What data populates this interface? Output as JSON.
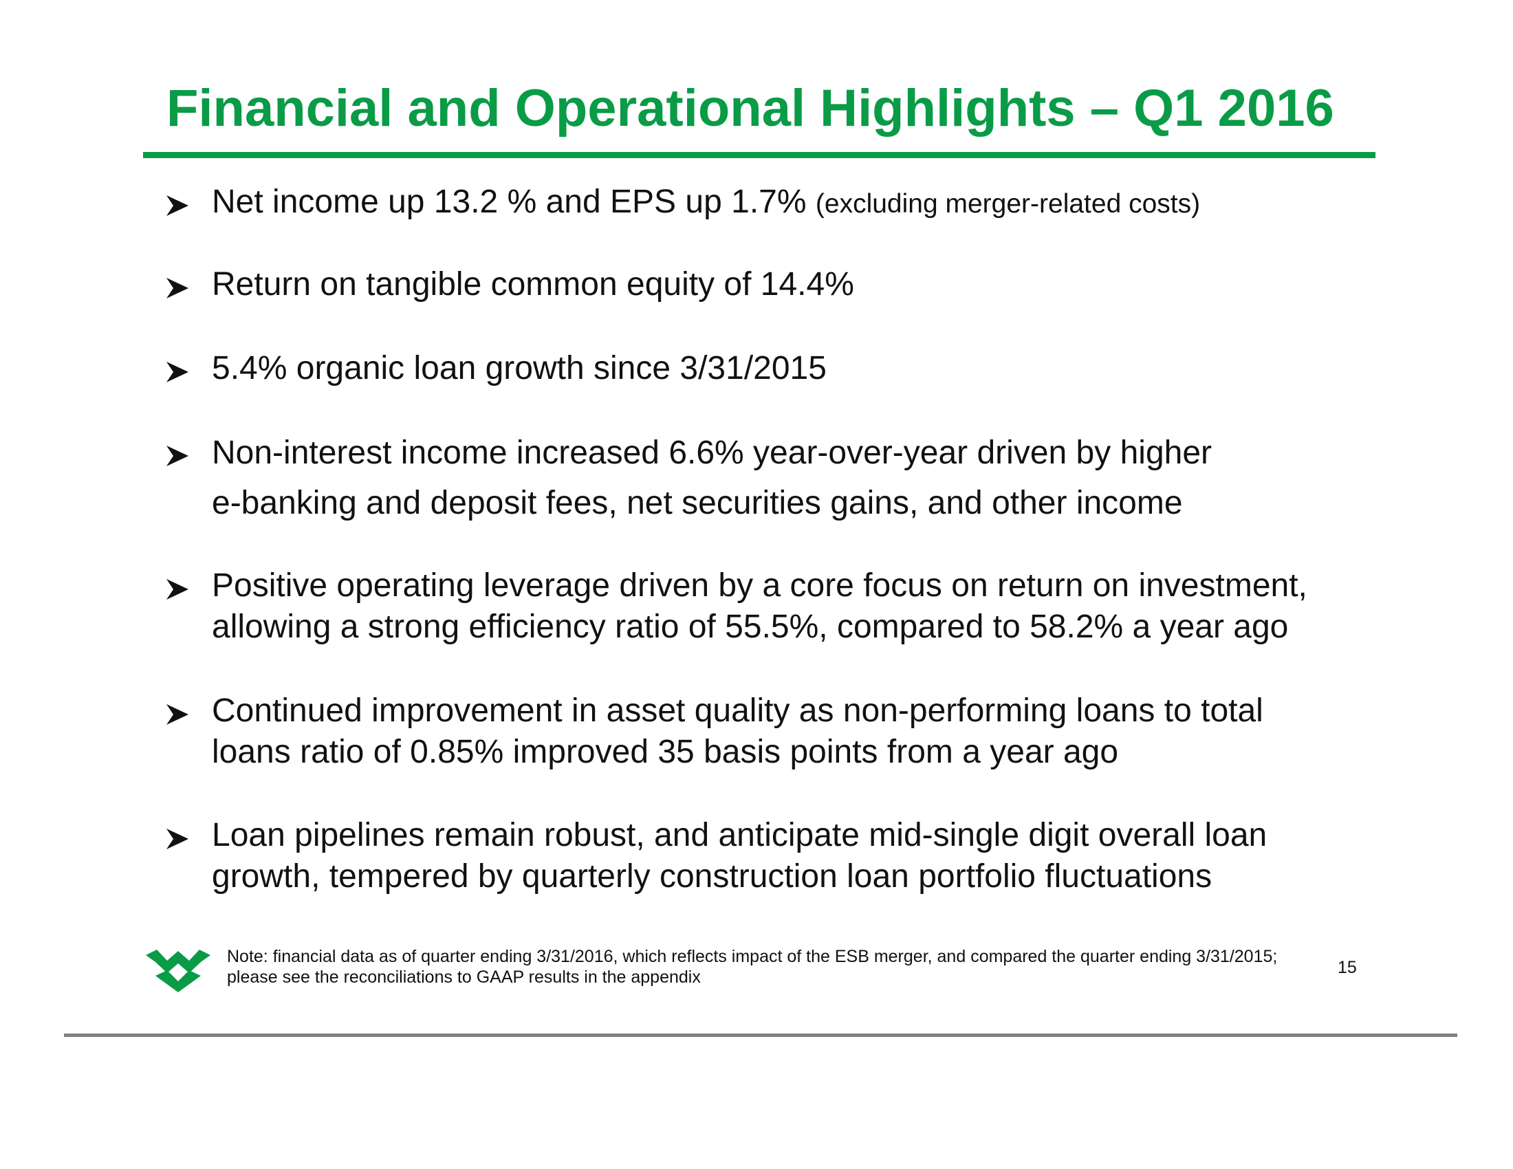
{
  "title": "Financial and Operational Highlights – Q1 2016",
  "colors": {
    "accent": "#0a9b47",
    "text": "#111111",
    "bottom_rule": "#808080"
  },
  "bullet_icon": "arrowhead-bullet-icon",
  "bullets": [
    {
      "text": "Net income up 13.2 % and EPS up 1.7%",
      "note": "(excluding merger-related costs)"
    },
    {
      "text": "Return on tangible common equity of 14.4%"
    },
    {
      "text": "5.4% organic loan growth since 3/31/2015"
    },
    {
      "text": "Non-interest income increased 6.6% year-over-year driven by higher\ne-banking and deposit fees, net securities gains, and other income"
    },
    {
      "text": "Positive operating leverage driven by a core focus on return on investment,\nallowing a strong efficiency ratio of 55.5%, compared to 58.2% a year ago"
    },
    {
      "text": "Continued improvement in asset quality as non-performing loans to total\nloans ratio of 0.85% improved 35 basis points from a year ago"
    },
    {
      "text": "Loan pipelines remain robust, and anticipate mid-single digit overall loan\ngrowth, tempered by quarterly construction loan portfolio fluctuations"
    }
  ],
  "footnote": "Note: financial data as of quarter ending 3/31/2016, which reflects impact of the ESB merger, and compared the quarter ending 3/31/2015;\nplease see the reconciliations to GAAP results in the appendix",
  "page_number": "15",
  "logo_icon": "company-logo-icon"
}
